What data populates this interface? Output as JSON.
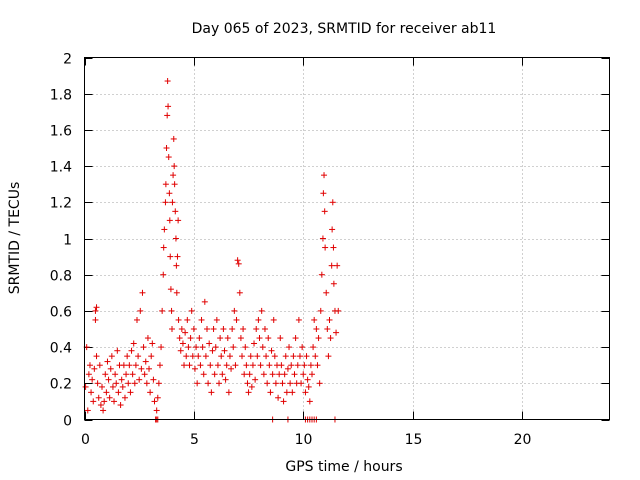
{
  "chart_data": {
    "type": "scatter",
    "title": "Day 065 of 2023, SRMTID for receiver ab11",
    "xlabel": "GPS time / hours",
    "ylabel": "SRMTID / TECUs",
    "xlim": [
      0,
      24
    ],
    "ylim": [
      0,
      2
    ],
    "xticks": [
      0,
      5,
      10,
      15,
      20
    ],
    "xtick_labels": [
      "0",
      "5",
      "10",
      "15",
      "20"
    ],
    "yticks": [
      0,
      0.2,
      0.4,
      0.6,
      0.8,
      1,
      1.2,
      1.4,
      1.6,
      1.8,
      2
    ],
    "ytick_labels": [
      "0",
      "0.2",
      "0.4",
      "0.6",
      "0.8",
      "1",
      "1.2",
      "1.4",
      "1.6",
      "1.8",
      "2"
    ],
    "grid": true,
    "marker": "plus",
    "series": [
      {
        "name": "SRMTID",
        "color": "#e00000",
        "points": [
          [
            0.05,
            0.18
          ],
          [
            0.1,
            0.4
          ],
          [
            0.15,
            0.05
          ],
          [
            0.2,
            0.25
          ],
          [
            0.25,
            0.3
          ],
          [
            0.3,
            0.15
          ],
          [
            0.35,
            0.22
          ],
          [
            0.4,
            0.1
          ],
          [
            0.45,
            0.28
          ],
          [
            0.5,
            0.55
          ],
          [
            0.5,
            0.6
          ],
          [
            0.55,
            0.35
          ],
          [
            0.55,
            0.62
          ],
          [
            0.6,
            0.2
          ],
          [
            0.65,
            0.12
          ],
          [
            0.7,
            0.3
          ],
          [
            0.75,
            0.08
          ],
          [
            0.8,
            0.18
          ],
          [
            0.85,
            0.05
          ],
          [
            0.9,
            0.1
          ],
          [
            0.95,
            0.25
          ],
          [
            1.0,
            0.15
          ],
          [
            1.05,
            0.32
          ],
          [
            1.1,
            0.22
          ],
          [
            1.15,
            0.12
          ],
          [
            1.2,
            0.28
          ],
          [
            1.25,
            0.35
          ],
          [
            1.3,
            0.18
          ],
          [
            1.35,
            0.1
          ],
          [
            1.4,
            0.25
          ],
          [
            1.45,
            0.2
          ],
          [
            1.5,
            0.38
          ],
          [
            1.55,
            0.15
          ],
          [
            1.6,
            0.3
          ],
          [
            1.65,
            0.08
          ],
          [
            1.7,
            0.22
          ],
          [
            1.75,
            0.18
          ],
          [
            1.8,
            0.3
          ],
          [
            1.85,
            0.12
          ],
          [
            1.9,
            0.25
          ],
          [
            1.95,
            0.35
          ],
          [
            2.0,
            0.2
          ],
          [
            2.05,
            0.3
          ],
          [
            2.1,
            0.15
          ],
          [
            2.15,
            0.38
          ],
          [
            2.2,
            0.25
          ],
          [
            2.25,
            0.42
          ],
          [
            2.3,
            0.2
          ],
          [
            2.35,
            0.3
          ],
          [
            2.4,
            0.55
          ],
          [
            2.45,
            0.35
          ],
          [
            2.5,
            0.22
          ],
          [
            2.55,
            0.6
          ],
          [
            2.6,
            0.28
          ],
          [
            2.65,
            0.7
          ],
          [
            2.7,
            0.4
          ],
          [
            2.75,
            0.25
          ],
          [
            2.8,
            0.32
          ],
          [
            2.85,
            0.2
          ],
          [
            2.9,
            0.45
          ],
          [
            2.95,
            0.28
          ],
          [
            3.0,
            0.15
          ],
          [
            3.05,
            0.35
          ],
          [
            3.1,
            0.42
          ],
          [
            3.15,
            0.22
          ],
          [
            3.2,
            0.1
          ],
          [
            3.3,
            0.05
          ],
          [
            3.35,
            0.12
          ],
          [
            3.4,
            0.2
          ],
          [
            3.45,
            0.3
          ],
          [
            3.5,
            0.4
          ],
          [
            3.55,
            0.6
          ],
          [
            3.6,
            0.8
          ],
          [
            3.62,
            0.95
          ],
          [
            3.65,
            1.05
          ],
          [
            3.7,
            1.2
          ],
          [
            3.72,
            1.3
          ],
          [
            3.75,
            1.5
          ],
          [
            3.78,
            1.68
          ],
          [
            3.8,
            1.87
          ],
          [
            3.82,
            1.73
          ],
          [
            3.85,
            1.45
          ],
          [
            3.88,
            1.25
          ],
          [
            3.9,
            1.1
          ],
          [
            3.92,
            0.9
          ],
          [
            3.95,
            0.72
          ],
          [
            3.98,
            0.6
          ],
          [
            4.0,
            0.5
          ],
          [
            4.02,
            1.2
          ],
          [
            4.05,
            1.35
          ],
          [
            4.08,
            1.55
          ],
          [
            4.1,
            1.4
          ],
          [
            4.12,
            1.3
          ],
          [
            4.15,
            1.15
          ],
          [
            4.18,
            1.0
          ],
          [
            4.2,
            0.85
          ],
          [
            4.22,
            0.7
          ],
          [
            4.25,
            0.9
          ],
          [
            4.28,
            1.1
          ],
          [
            4.3,
            0.55
          ],
          [
            4.35,
            0.45
          ],
          [
            4.4,
            0.38
          ],
          [
            4.45,
            0.5
          ],
          [
            4.5,
            0.42
          ],
          [
            4.55,
            0.3
          ],
          [
            4.6,
            0.48
          ],
          [
            4.65,
            0.35
          ],
          [
            4.7,
            0.55
          ],
          [
            4.75,
            0.4
          ],
          [
            4.8,
            0.3
          ],
          [
            4.85,
            0.45
          ],
          [
            4.9,
            0.6
          ],
          [
            4.95,
            0.35
          ],
          [
            5.0,
            0.5
          ],
          [
            5.05,
            0.28
          ],
          [
            5.1,
            0.4
          ],
          [
            5.15,
            0.2
          ],
          [
            5.2,
            0.35
          ],
          [
            5.25,
            0.45
          ],
          [
            5.3,
            0.3
          ],
          [
            5.35,
            0.55
          ],
          [
            5.4,
            0.4
          ],
          [
            5.45,
            0.25
          ],
          [
            5.5,
            0.65
          ],
          [
            5.55,
            0.35
          ],
          [
            5.6,
            0.5
          ],
          [
            5.65,
            0.2
          ],
          [
            5.7,
            0.42
          ],
          [
            5.75,
            0.3
          ],
          [
            5.8,
            0.15
          ],
          [
            5.85,
            0.38
          ],
          [
            5.9,
            0.5
          ],
          [
            5.95,
            0.25
          ],
          [
            6.0,
            0.4
          ],
          [
            6.05,
            0.55
          ],
          [
            6.1,
            0.3
          ],
          [
            6.15,
            0.2
          ],
          [
            6.2,
            0.45
          ],
          [
            6.25,
            0.35
          ],
          [
            6.3,
            0.25
          ],
          [
            6.35,
            0.5
          ],
          [
            6.4,
            0.38
          ],
          [
            6.45,
            0.22
          ],
          [
            6.5,
            0.3
          ],
          [
            6.55,
            0.45
          ],
          [
            6.6,
            0.15
          ],
          [
            6.65,
            0.35
          ],
          [
            6.7,
            0.28
          ],
          [
            6.75,
            0.5
          ],
          [
            6.8,
            0.4
          ],
          [
            6.85,
            0.6
          ],
          [
            6.9,
            0.3
          ],
          [
            6.95,
            0.55
          ],
          [
            7.0,
            0.88
          ],
          [
            7.05,
            0.86
          ],
          [
            7.1,
            0.7
          ],
          [
            7.15,
            0.45
          ],
          [
            7.2,
            0.35
          ],
          [
            7.25,
            0.5
          ],
          [
            7.3,
            0.25
          ],
          [
            7.35,
            0.4
          ],
          [
            7.4,
            0.3
          ],
          [
            7.45,
            0.2
          ],
          [
            7.5,
            0.15
          ],
          [
            7.55,
            0.25
          ],
          [
            7.6,
            0.35
          ],
          [
            7.65,
            0.18
          ],
          [
            7.7,
            0.3
          ],
          [
            7.75,
            0.42
          ],
          [
            7.8,
            0.22
          ],
          [
            7.85,
            0.5
          ],
          [
            7.9,
            0.35
          ],
          [
            7.95,
            0.55
          ],
          [
            8.0,
            0.45
          ],
          [
            8.05,
            0.3
          ],
          [
            8.1,
            0.6
          ],
          [
            8.15,
            0.4
          ],
          [
            8.2,
            0.25
          ],
          [
            8.25,
            0.5
          ],
          [
            8.3,
            0.35
          ],
          [
            8.35,
            0.2
          ],
          [
            8.4,
            0.45
          ],
          [
            8.45,
            0.3
          ],
          [
            8.5,
            0.15
          ],
          [
            8.55,
            0.38
          ],
          [
            8.6,
            0.25
          ],
          [
            8.65,
            0.55
          ],
          [
            8.7,
            0.35
          ],
          [
            8.75,
            0.2
          ],
          [
            8.8,
            0.3
          ],
          [
            8.85,
            0.12
          ],
          [
            8.9,
            0.25
          ],
          [
            8.95,
            0.45
          ],
          [
            9.0,
            0.3
          ],
          [
            9.05,
            0.2
          ],
          [
            9.1,
            0.1
          ],
          [
            9.15,
            0.25
          ],
          [
            9.2,
            0.35
          ],
          [
            9.25,
            0.15
          ],
          [
            9.3,
            0.28
          ],
          [
            9.35,
            0.4
          ],
          [
            9.4,
            0.2
          ],
          [
            9.45,
            0.3
          ],
          [
            9.5,
            0.15
          ],
          [
            9.55,
            0.35
          ],
          [
            9.6,
            0.25
          ],
          [
            9.65,
            0.45
          ],
          [
            9.7,
            0.2
          ],
          [
            9.75,
            0.3
          ],
          [
            9.8,
            0.55
          ],
          [
            9.85,
            0.35
          ],
          [
            9.9,
            0.2
          ],
          [
            9.95,
            0.4
          ],
          [
            10.0,
            0.25
          ],
          [
            10.05,
            0.3
          ],
          [
            10.1,
            0.15
          ],
          [
            10.15,
            0.35
          ],
          [
            10.2,
            0.22
          ],
          [
            10.25,
            0.18
          ],
          [
            10.3,
            0.1
          ],
          [
            10.35,
            0.3
          ],
          [
            10.4,
            0.25
          ],
          [
            10.45,
            0.4
          ],
          [
            10.5,
            0.55
          ],
          [
            10.55,
            0.35
          ],
          [
            10.6,
            0.5
          ],
          [
            10.65,
            0.3
          ],
          [
            10.7,
            0.45
          ],
          [
            10.75,
            0.2
          ],
          [
            10.8,
            0.6
          ],
          [
            10.85,
            0.8
          ],
          [
            10.9,
            1.0
          ],
          [
            10.92,
            1.25
          ],
          [
            10.95,
            1.35
          ],
          [
            10.98,
            1.15
          ],
          [
            11.0,
            0.95
          ],
          [
            11.05,
            0.7
          ],
          [
            11.1,
            0.5
          ],
          [
            11.15,
            0.35
          ],
          [
            11.2,
            0.55
          ],
          [
            11.25,
            0.45
          ],
          [
            11.3,
            0.85
          ],
          [
            11.32,
            1.05
          ],
          [
            11.35,
            1.2
          ],
          [
            11.38,
            0.95
          ],
          [
            11.4,
            0.75
          ],
          [
            11.45,
            0.6
          ],
          [
            11.5,
            0.48
          ],
          [
            11.55,
            0.85
          ],
          [
            11.6,
            0.6
          ],
          [
            3.25,
            0.0
          ],
          [
            3.3,
            0.0
          ],
          [
            3.35,
            0.0
          ],
          [
            8.6,
            0.0
          ],
          [
            9.3,
            0.0
          ],
          [
            10.1,
            0.0
          ],
          [
            10.2,
            0.0
          ],
          [
            10.3,
            0.0
          ],
          [
            10.4,
            0.0
          ],
          [
            10.5,
            0.0
          ],
          [
            10.6,
            0.0
          ],
          [
            11.45,
            0.0
          ]
        ]
      }
    ]
  }
}
